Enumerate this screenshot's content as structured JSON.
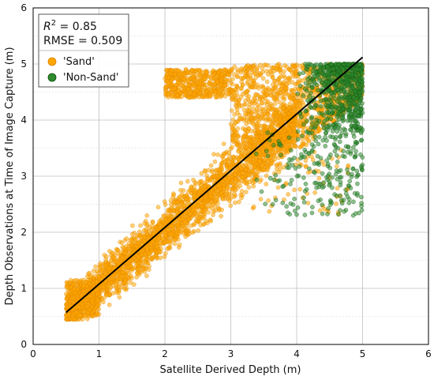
{
  "chart_data": {
    "type": "scatter",
    "title": "",
    "xlabel": "Satellite Derived Depth (m)",
    "ylabel": "Depth Observations at Time of Image Capture (m)",
    "xlim": [
      0,
      6
    ],
    "ylim": [
      0,
      6
    ],
    "xticks": [
      "0",
      "1",
      "2",
      "3",
      "4",
      "5",
      "6"
    ],
    "yticks": [
      "0",
      "1",
      "2",
      "3",
      "4",
      "5",
      "6"
    ],
    "grid": true,
    "minor_grid_y": true,
    "legend_placement": "top-left",
    "annotations": {
      "r2_prefix": "R",
      "r2_sup": "2",
      "r2_rest": " = 0.85",
      "rmse": "RMSE = 0.509"
    },
    "series": [
      {
        "name": "'Sand'",
        "marker": "circle",
        "color": "#FFA500",
        "edge": "#D98200",
        "regions": [
          {
            "x": [
              0.5,
              1.0
            ],
            "y": [
              0.5,
              1.15
            ],
            "note": "low-depth cluster"
          },
          {
            "along_line": {
              "slope": 0.99,
              "intercept": 0.05
            },
            "x": [
              0.5,
              4.0
            ],
            "spread": 0.35
          },
          {
            "x": [
              2.0,
              3.0
            ],
            "y": [
              4.4,
              4.9
            ],
            "note": "shallow-offset band"
          },
          {
            "x": [
              3.0,
              5.0
            ],
            "y": [
              3.5,
              5.0
            ],
            "note": "upper saturation band"
          },
          {
            "x": [
              3.3,
              4.8
            ],
            "y": [
              2.3,
              3.5
            ],
            "note": "scattered outliers"
          }
        ]
      },
      {
        "name": "'Non-Sand'",
        "marker": "circle",
        "color": "#2E8B2E",
        "edge": "#0B4D0B",
        "regions": [
          {
            "x": [
              4.0,
              5.0
            ],
            "y": [
              3.8,
              5.0
            ],
            "note": "dense cluster"
          },
          {
            "x": [
              3.3,
              5.0
            ],
            "y": [
              2.3,
              3.8
            ],
            "note": "scattered points"
          }
        ]
      }
    ],
    "fit_line": {
      "x": [
        0.5,
        5.0
      ],
      "y": [
        0.57,
        5.12
      ],
      "color": "#000000"
    }
  }
}
